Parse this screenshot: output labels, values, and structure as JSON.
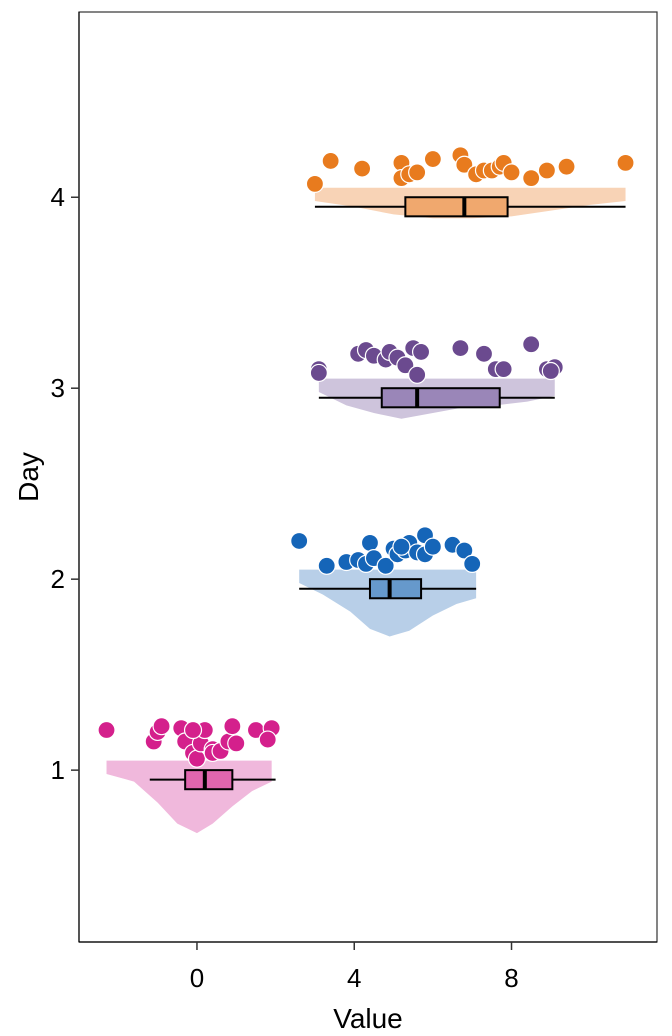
{
  "chart_data": {
    "type": "raincloud",
    "title": "",
    "xlabel": "Value",
    "ylabel": "Day",
    "xlim": [
      -3.0,
      11.7
    ],
    "ylim": [
      0.1,
      4.97
    ],
    "x_ticks": [
      0,
      4,
      8
    ],
    "y_ticks": [
      1,
      2,
      3,
      4
    ],
    "grid": false,
    "legend": "none",
    "series": [
      {
        "day": 1,
        "point_color": "#D4208C",
        "box_color": "#E066AE",
        "cloud_color": "#F0B8DC",
        "points": [
          [
            -2.3,
            1.21
          ],
          [
            -1.1,
            1.15
          ],
          [
            -1.0,
            1.2
          ],
          [
            -0.9,
            1.23
          ],
          [
            -0.4,
            1.22
          ],
          [
            -0.3,
            1.15
          ],
          [
            -0.1,
            1.09
          ],
          [
            0.0,
            1.06
          ],
          [
            0.1,
            1.14
          ],
          [
            0.2,
            1.21
          ],
          [
            0.4,
            1.11
          ],
          [
            0.4,
            1.09
          ],
          [
            0.6,
            1.1
          ],
          [
            0.8,
            1.15
          ],
          [
            0.9,
            1.23
          ],
          [
            1.0,
            1.14
          ],
          [
            1.5,
            1.21
          ],
          [
            1.9,
            1.22
          ],
          [
            1.8,
            1.16
          ],
          [
            -0.1,
            1.21
          ]
        ],
        "box": {
          "min": -1.2,
          "q1": -0.3,
          "median": 0.2,
          "q3": 0.9,
          "max": 2.0
        },
        "density": {
          "x": [
            -2.3,
            -1.6,
            -1.0,
            -0.5,
            0.0,
            0.4,
            0.9,
            1.4,
            1.9
          ],
          "h": [
            0.02,
            0.06,
            0.17,
            0.28,
            0.33,
            0.28,
            0.19,
            0.11,
            0.06
          ]
        }
      },
      {
        "day": 2,
        "point_color": "#1565B8",
        "box_color": "#6699CC",
        "cloud_color": "#B8CFE8",
        "points": [
          [
            2.6,
            2.2
          ],
          [
            3.3,
            2.07
          ],
          [
            3.8,
            2.09
          ],
          [
            4.1,
            2.1
          ],
          [
            4.3,
            2.08
          ],
          [
            4.4,
            2.19
          ],
          [
            4.5,
            2.11
          ],
          [
            4.8,
            2.07
          ],
          [
            5.0,
            2.16
          ],
          [
            5.1,
            2.13
          ],
          [
            5.3,
            2.15
          ],
          [
            5.4,
            2.19
          ],
          [
            5.6,
            2.14
          ],
          [
            5.8,
            2.13
          ],
          [
            5.8,
            2.23
          ],
          [
            6.0,
            2.17
          ],
          [
            6.5,
            2.18
          ],
          [
            6.8,
            2.15
          ],
          [
            7.0,
            2.08
          ],
          [
            5.2,
            2.17
          ]
        ],
        "box": {
          "min": 2.6,
          "q1": 4.4,
          "median": 4.9,
          "q3": 5.7,
          "max": 7.1
        },
        "density": {
          "x": [
            2.6,
            3.2,
            3.9,
            4.4,
            4.9,
            5.4,
            6.0,
            6.6,
            7.1
          ],
          "h": [
            0.02,
            0.08,
            0.17,
            0.26,
            0.3,
            0.27,
            0.19,
            0.13,
            0.1
          ]
        }
      },
      {
        "day": 3,
        "point_color": "#6B4A8F",
        "box_color": "#9A86B8",
        "cloud_color": "#CEC4DC",
        "points": [
          [
            3.1,
            3.1
          ],
          [
            3.1,
            3.08
          ],
          [
            4.1,
            3.18
          ],
          [
            4.3,
            3.2
          ],
          [
            4.5,
            3.17
          ],
          [
            4.8,
            3.15
          ],
          [
            4.9,
            3.19
          ],
          [
            5.1,
            3.16
          ],
          [
            5.3,
            3.12
          ],
          [
            5.5,
            3.21
          ],
          [
            5.6,
            3.07
          ],
          [
            5.7,
            3.19
          ],
          [
            6.7,
            3.21
          ],
          [
            7.3,
            3.18
          ],
          [
            7.6,
            3.1
          ],
          [
            7.8,
            3.1
          ],
          [
            8.5,
            3.23
          ],
          [
            8.9,
            3.1
          ],
          [
            9.1,
            3.11
          ],
          [
            9.0,
            3.09
          ]
        ],
        "box": {
          "min": 3.1,
          "q1": 4.7,
          "median": 5.6,
          "q3": 7.7,
          "max": 9.1
        },
        "density": {
          "x": [
            3.1,
            3.8,
            4.5,
            5.2,
            6.0,
            6.8,
            7.6,
            8.4,
            9.1
          ],
          "h": [
            0.02,
            0.09,
            0.13,
            0.16,
            0.13,
            0.1,
            0.09,
            0.07,
            0.04
          ]
        }
      },
      {
        "day": 4,
        "point_color": "#E87B1E",
        "box_color": "#F0A86E",
        "cloud_color": "#F8D3B6",
        "points": [
          [
            3.0,
            4.07
          ],
          [
            3.4,
            4.19
          ],
          [
            4.2,
            4.15
          ],
          [
            5.2,
            4.18
          ],
          [
            5.2,
            4.1
          ],
          [
            5.4,
            4.12
          ],
          [
            6.0,
            4.2
          ],
          [
            6.7,
            4.22
          ],
          [
            6.8,
            4.17
          ],
          [
            7.1,
            4.12
          ],
          [
            7.3,
            4.14
          ],
          [
            7.5,
            4.14
          ],
          [
            7.7,
            4.16
          ],
          [
            7.8,
            4.18
          ],
          [
            8.0,
            4.13
          ],
          [
            8.5,
            4.1
          ],
          [
            8.9,
            4.14
          ],
          [
            9.4,
            4.16
          ],
          [
            10.9,
            4.18
          ],
          [
            5.6,
            4.13
          ]
        ],
        "box": {
          "min": 3.0,
          "q1": 5.3,
          "median": 6.8,
          "q3": 7.9,
          "max": 10.9
        },
        "density": {
          "x": [
            3.0,
            4.0,
            5.0,
            6.0,
            7.0,
            8.0,
            9.0,
            10.0,
            10.9
          ],
          "h": [
            0.02,
            0.05,
            0.09,
            0.11,
            0.11,
            0.1,
            0.07,
            0.04,
            0.02
          ]
        }
      }
    ]
  }
}
